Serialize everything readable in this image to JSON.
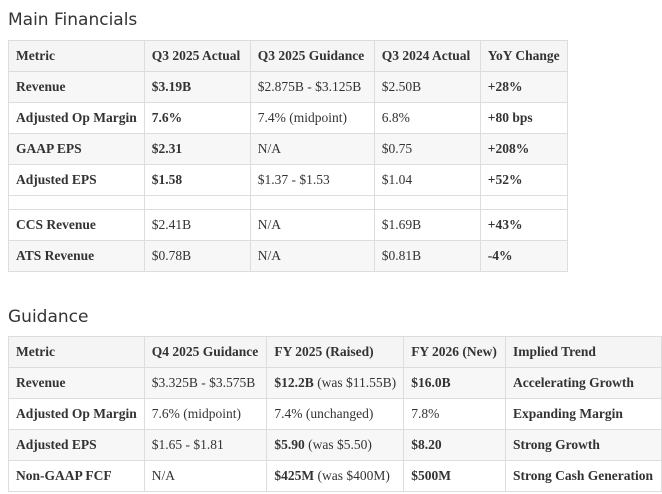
{
  "sections": [
    {
      "title": "Main Financials",
      "table": {
        "header": [
          "Metric",
          "Q3 2025 Actual",
          "Q3 2025 Guidance",
          "Q3 2024 Actual",
          "YoY Change"
        ],
        "rows": [
          {
            "cells": [
              "Revenue",
              "$3.19B",
              "$2.875B - $3.125B",
              "$2.50B",
              "+28%"
            ],
            "bold": [
              0,
              1,
              4
            ]
          },
          {
            "cells": [
              "Adjusted Op Margin",
              "7.6%",
              "7.4% (midpoint)",
              "6.8%",
              "+80 bps"
            ],
            "bold": [
              0,
              1,
              4
            ]
          },
          {
            "cells": [
              "GAAP EPS",
              "$2.31",
              "N/A",
              "$0.75",
              "+208%"
            ],
            "bold": [
              0,
              1,
              4
            ]
          },
          {
            "cells": [
              "Adjusted EPS",
              "$1.58",
              "$1.37 - $1.53",
              "$1.04",
              "+52%"
            ],
            "bold": [
              0,
              1,
              4
            ]
          },
          {
            "cells": [],
            "bold": []
          },
          {
            "cells": [
              "CCS Revenue",
              "$2.41B",
              "N/A",
              "$1.69B",
              "+43%"
            ],
            "bold": [
              0,
              4
            ]
          },
          {
            "cells": [
              "ATS Revenue",
              "$0.78B",
              "N/A",
              "$0.81B",
              "-4%"
            ],
            "bold": [
              0,
              4
            ]
          }
        ]
      }
    },
    {
      "title": "Guidance",
      "table": {
        "header": [
          "Metric",
          "Q4 2025 Guidance",
          "FY 2025 (Raised)",
          "FY 2026 (New)",
          "Implied Trend"
        ],
        "rows": [
          {
            "cells": [
              "Revenue",
              "$3.325B - $3.575B",
              [
                "$12.2B",
                "(was $11.55B)"
              ],
              "$16.0B",
              "Accelerating Growth"
            ],
            "bold": [
              0,
              3,
              4
            ]
          },
          {
            "cells": [
              "Adjusted Op Margin",
              "7.6% (midpoint)",
              "7.4% (unchanged)",
              "7.8%",
              "Expanding Margin"
            ],
            "bold": [
              0,
              4
            ]
          },
          {
            "cells": [
              "Adjusted EPS",
              "$1.65 - $1.81",
              [
                "$5.90",
                "(was $5.50)"
              ],
              "$8.20",
              "Strong Growth"
            ],
            "bold": [
              0,
              3,
              4
            ]
          },
          {
            "cells": [
              "Non-GAAP FCF",
              "N/A",
              [
                "$425M",
                "(was $400M)"
              ],
              "$500M",
              "Strong Cash Generation"
            ],
            "bold": [
              0,
              3,
              4
            ]
          }
        ]
      }
    }
  ]
}
